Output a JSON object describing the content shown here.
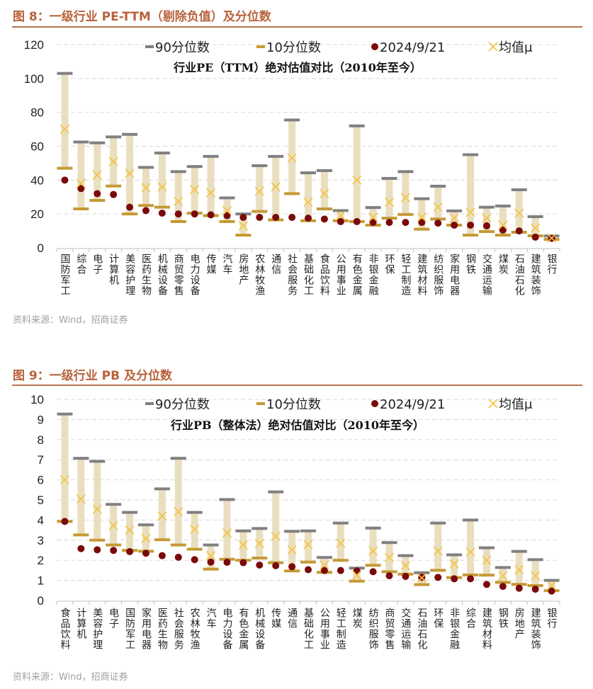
{
  "figures": [
    {
      "title": "图 8：一级行业 PE-TTM（剔除负值）及分位数",
      "source": "资料来源：Wind，招商证券"
    },
    {
      "title": "图 9：一级行业 PB 及分位数",
      "source": "资料来源：Wind，招商证券"
    }
  ],
  "colors": {
    "title": "#b8623a",
    "p90": "#808080",
    "p10": "#c49a34",
    "current": "#7a0a0a",
    "mean": "#f5c342",
    "band": "#e9dfbf"
  },
  "chart_data": [
    {
      "type": "range-dot",
      "title": "行业PE（TTM）绝对估值对比（2010年至今）",
      "ylim": [
        0,
        120
      ],
      "yticks": [
        0,
        20,
        40,
        60,
        80,
        100,
        120
      ],
      "grid": true,
      "legend_position": "top",
      "legend": [
        "90分位数",
        "10分位数",
        "2024/9/21",
        "均值μ"
      ],
      "categories": [
        "国防军工",
        "综合",
        "电子",
        "计算机",
        "美容护理",
        "医药生物",
        "机械设备",
        "商贸零售",
        "电力设备",
        "传媒",
        "汽车",
        "房地产",
        "农林牧渔",
        "通信",
        "社会服务",
        "基础化工",
        "食品饮料",
        "公用事业",
        "有色金属",
        "非银金融",
        "环保",
        "轻工制造",
        "建筑材料",
        "纺织服饰",
        "家用电器",
        "钢铁",
        "交通运输",
        "煤炭",
        "石油石化",
        "建筑装饰",
        "银行"
      ],
      "series": [
        {
          "name": "90分位数",
          "values": [
            103,
            62.5,
            62,
            65.5,
            67,
            47.5,
            56,
            45,
            48,
            54,
            29.5,
            20,
            48.5,
            54,
            75.5,
            44.3,
            45.6,
            22,
            72,
            23.8,
            41,
            45,
            29,
            36.4,
            21.8,
            55,
            24,
            24.7,
            34.3,
            18.4,
            7
          ]
        },
        {
          "name": "10分位数",
          "values": [
            47,
            23,
            28,
            36.5,
            20,
            25,
            24,
            15.5,
            20.5,
            19,
            15.5,
            7.5,
            21.5,
            16.5,
            32,
            16,
            23,
            16,
            15.5,
            13.4,
            17.5,
            19.7,
            11,
            17,
            13.4,
            7.5,
            9.6,
            7.5,
            9.2,
            7.1,
            5
          ]
        },
        {
          "name": "2024/9/21",
          "values": [
            40,
            35,
            32,
            31.5,
            24,
            22,
            20.5,
            20,
            20,
            19.5,
            19,
            18,
            18,
            18,
            18,
            17.5,
            17,
            15.5,
            15.5,
            15,
            15,
            15,
            15,
            14.6,
            13.4,
            13.4,
            13,
            10.5,
            10,
            6.3,
            5.6
          ]
        },
        {
          "name": "均值μ",
          "values": [
            70,
            38,
            43,
            51,
            44,
            35.5,
            36,
            27.5,
            34.5,
            32.5,
            22,
            13,
            33.5,
            36,
            53,
            27,
            32,
            19,
            40,
            18,
            27,
            29.7,
            18,
            24,
            17.6,
            21,
            17.6,
            13.4,
            20.5,
            11.7,
            5.8
          ]
        }
      ]
    },
    {
      "type": "range-dot",
      "title": "行业PB（整体法）绝对估值对比（2010年至今）",
      "ylim": [
        0,
        10
      ],
      "yticks": [
        0,
        1,
        2,
        3,
        4,
        5,
        6,
        7,
        8,
        9,
        10
      ],
      "grid": true,
      "legend_position": "top",
      "legend": [
        "90分位数",
        "10分位数",
        "2024/9/21",
        "均值μ"
      ],
      "categories": [
        "食品饮料",
        "计算机",
        "美容护理",
        "电子",
        "国防军工",
        "家用电器",
        "医药生物",
        "社会服务",
        "农林牧渔",
        "汽车",
        "电力设备",
        "有色金属",
        "机械设备",
        "传媒",
        "通信",
        "基础化工",
        "公用事业",
        "轻工制造",
        "煤炭",
        "纺织服饰",
        "商贸零售",
        "交通运输",
        "石油石化",
        "环保",
        "非银金融",
        "综合",
        "建筑材料",
        "钢铁",
        "房地产",
        "建筑装饰",
        "银行"
      ],
      "series": [
        {
          "name": "90分位数",
          "values": [
            9.27,
            7.07,
            6.92,
            4.78,
            4.38,
            3.76,
            5.55,
            7.07,
            4.38,
            2.76,
            5.02,
            3.46,
            3.58,
            5.4,
            3.44,
            3.46,
            2.14,
            3.85,
            1.61,
            3.6,
            2.88,
            2.23,
            1.38,
            3.85,
            2.27,
            4.0,
            2.62,
            1.64,
            2.44,
            2.03,
            1.0
          ]
        },
        {
          "name": "10分位数",
          "values": [
            3.93,
            3.26,
            3.0,
            2.76,
            2.49,
            2.45,
            3.02,
            2.76,
            2.55,
            1.56,
            2.05,
            2.0,
            2.11,
            1.88,
            1.47,
            1.91,
            1.4,
            2.0,
            0.96,
            1.75,
            1.43,
            1.31,
            0.79,
            1.5,
            1.14,
            1.27,
            1.26,
            0.9,
            0.8,
            0.74,
            0.49
          ]
        },
        {
          "name": "2024/9/21",
          "values": [
            3.93,
            2.58,
            2.52,
            2.49,
            2.43,
            2.35,
            2.23,
            2.15,
            2.03,
            1.91,
            1.9,
            1.88,
            1.76,
            1.73,
            1.68,
            1.53,
            1.49,
            1.49,
            1.47,
            1.43,
            1.23,
            1.2,
            1.15,
            1.15,
            1.08,
            1.08,
            0.8,
            0.7,
            0.61,
            0.56,
            0.47
          ]
        },
        {
          "name": "均值μ",
          "values": [
            6.0,
            5.05,
            4.54,
            3.73,
            3.5,
            3.08,
            4.2,
            4.42,
            3.54,
            2.23,
            3.35,
            2.76,
            2.84,
            3.19,
            2.52,
            2.78,
            1.76,
            2.85,
            1.26,
            2.46,
            2.14,
            1.73,
            1.12,
            2.46,
            1.82,
            2.41,
            2.0,
            1.23,
            1.53,
            1.23,
            0.74
          ]
        }
      ]
    }
  ]
}
